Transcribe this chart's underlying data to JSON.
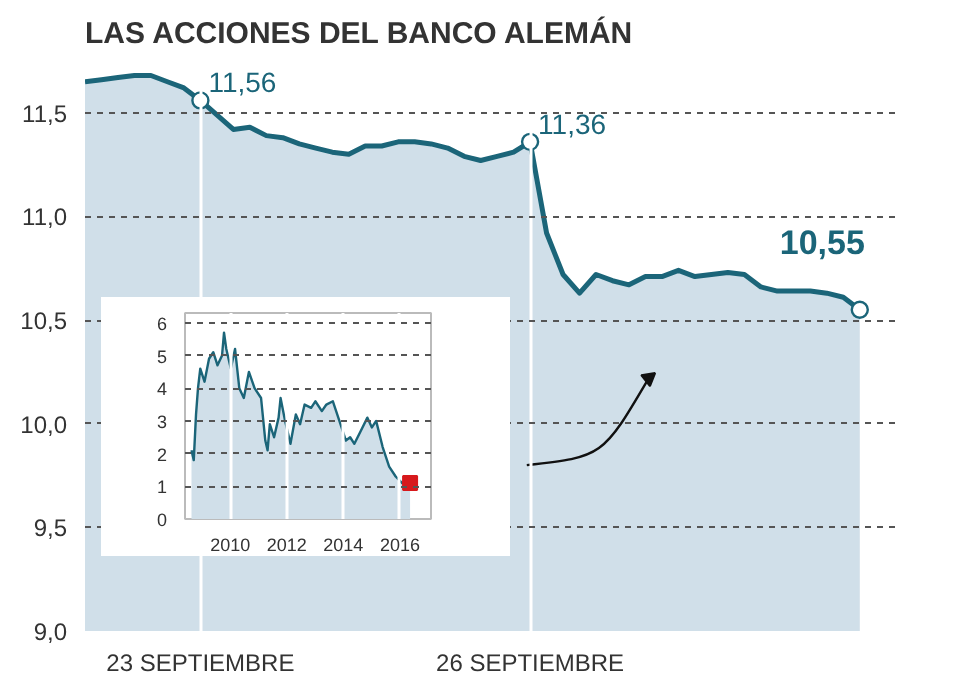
{
  "chart_data": [
    {
      "type": "area",
      "title": "LAS ACCIONES DEL BANCO ALEMÁN",
      "categories": [
        null,
        null,
        null,
        null,
        null,
        null,
        null,
        "23 SEPTIEMBRE",
        null,
        null,
        null,
        null,
        null,
        null,
        null,
        null,
        null,
        null,
        null,
        null,
        null,
        null,
        null,
        null,
        null,
        null,
        null,
        "26 SEPTIEMBRE",
        null,
        null,
        null,
        null,
        null,
        null,
        null,
        null,
        null,
        null,
        null,
        null,
        null,
        null,
        null,
        null,
        null,
        null,
        null,
        null
      ],
      "series": [
        {
          "color": "#1b6579",
          "values": [
            11.65,
            11.66,
            11.67,
            11.68,
            11.68,
            11.65,
            11.62,
            11.56,
            11.49,
            11.42,
            11.43,
            11.39,
            11.38,
            11.35,
            11.33,
            11.31,
            11.3,
            11.34,
            11.34,
            11.36,
            11.36,
            11.35,
            11.33,
            11.29,
            11.27,
            11.29,
            11.31,
            11.36,
            10.92,
            10.72,
            10.63,
            10.72,
            10.69,
            10.67,
            10.71,
            10.71,
            10.74,
            10.71,
            10.72,
            10.73,
            10.72,
            10.66,
            10.64,
            10.64,
            10.64,
            10.63,
            10.61,
            10.55
          ],
          "value_labels": [
            null,
            null,
            null,
            null,
            null,
            null,
            null,
            "11,56",
            null,
            null,
            null,
            null,
            null,
            null,
            null,
            null,
            null,
            null,
            null,
            null,
            null,
            null,
            null,
            null,
            null,
            null,
            null,
            "11,36",
            null,
            null,
            null,
            null,
            null,
            null,
            null,
            null,
            null,
            null,
            null,
            null,
            null,
            null,
            null,
            null,
            null,
            null,
            null,
            "10,55"
          ]
        }
      ],
      "ylim": [
        9.0,
        11.75
      ],
      "yticks": [
        {
          "value": 9.0,
          "label": "9,0"
        },
        {
          "value": 9.5,
          "label": "9,5"
        },
        {
          "value": 10.0,
          "label": "10,0"
        },
        {
          "value": 10.5,
          "label": "10,5"
        },
        {
          "value": 11.0,
          "label": "11,0"
        },
        {
          "value": 11.5,
          "label": "11,5"
        }
      ],
      "grid": true
    },
    {
      "type": "area",
      "x": [
        2008.63,
        2008.71,
        2008.79,
        2008.86,
        2008.94,
        2009.09,
        2009.25,
        2009.4,
        2009.55,
        2009.71,
        2009.78,
        2009.86,
        2010.02,
        2010.17,
        2010.32,
        2010.48,
        2010.66,
        2010.86,
        2011.09,
        2011.24,
        2011.32,
        2011.4,
        2011.55,
        2011.71,
        2011.78,
        2011.94,
        2012.13,
        2012.32,
        2012.47,
        2012.63,
        2012.86,
        2013.01,
        2013.24,
        2013.4,
        2013.63,
        2013.86,
        2014.09,
        2014.24,
        2014.39,
        2014.62,
        2014.85,
        2015.01,
        2015.16,
        2015.39,
        2015.62,
        2015.85,
        2016.08,
        2016.36
      ],
      "series": [
        {
          "color": "#1b6579",
          "values": [
            2.1,
            1.8,
            3.2,
            4.0,
            4.6,
            4.2,
            4.9,
            5.1,
            4.7,
            5.0,
            5.7,
            5.2,
            4.6,
            5.2,
            4.0,
            3.7,
            4.5,
            4.0,
            3.7,
            2.4,
            2.1,
            2.9,
            2.5,
            3.1,
            3.7,
            3.0,
            2.3,
            3.2,
            2.9,
            3.5,
            3.4,
            3.6,
            3.3,
            3.5,
            3.6,
            3.0,
            2.4,
            2.5,
            2.3,
            2.7,
            3.1,
            2.8,
            3.0,
            2.2,
            1.6,
            1.3,
            1.1,
            1.1
          ]
        },
        {
          "type": "scatter",
          "marker": "square",
          "color": "#d7191c",
          "x": [
            2016.36
          ],
          "values": [
            1.1
          ]
        }
      ],
      "xlim": [
        2008.4,
        2017.1
      ],
      "ylim": [
        0,
        6.3
      ],
      "xticks": [
        2010,
        2012,
        2014,
        2016
      ],
      "yticks": [
        0,
        1,
        2,
        3,
        4,
        5,
        6
      ],
      "grid": true
    }
  ]
}
